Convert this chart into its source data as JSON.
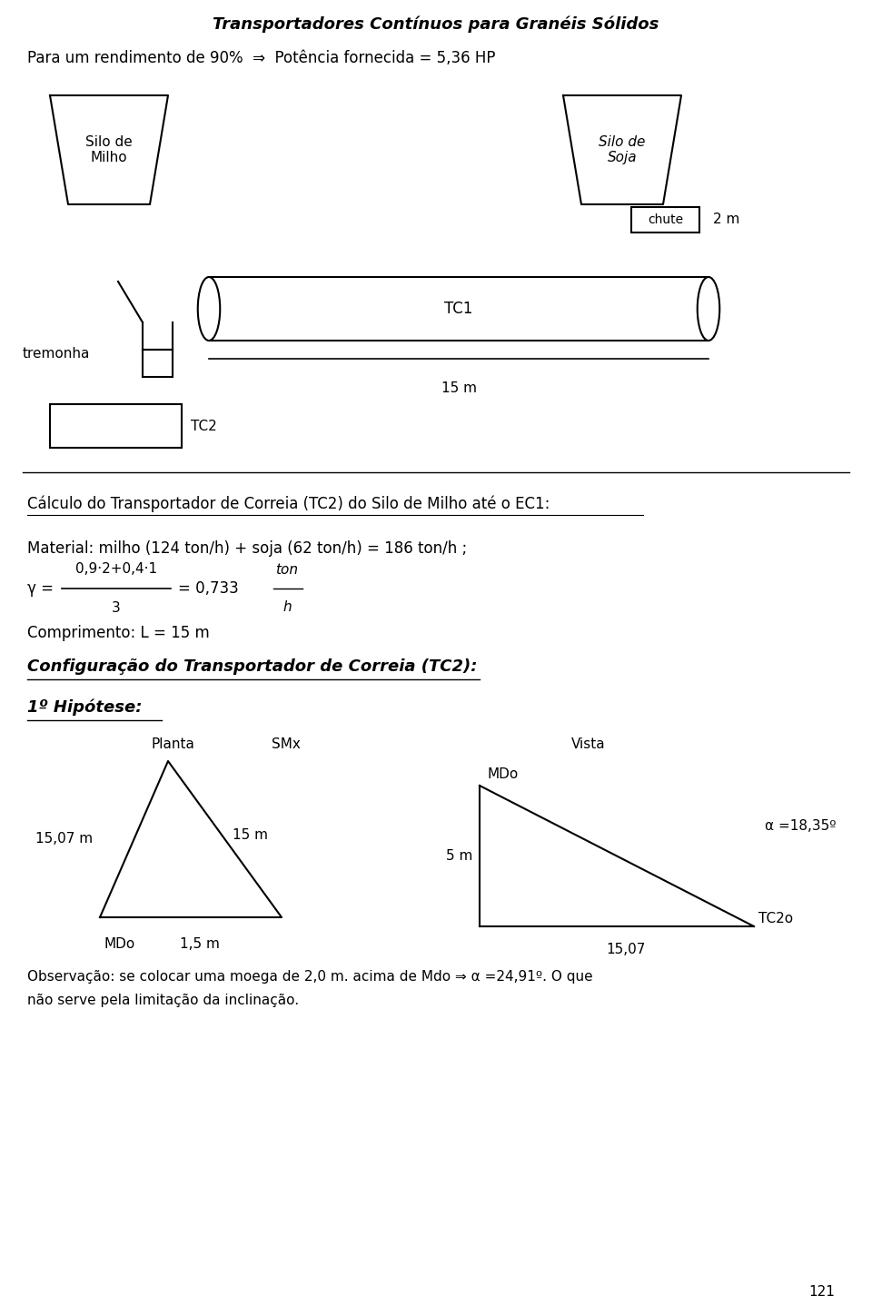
{
  "title": "Transportadores Contínuos para Granéis Sólidos",
  "line1": "Para um rendimento de 90%  ⇒  Potência fornecida = 5,36 HP",
  "silo_milho_label": "Silo de\nMilho",
  "silo_soja_label": "Silo de\nSoja",
  "chute_label": "chute",
  "dim_2m": "2 m",
  "tc1_label": "TC1",
  "tc2_label": "TC2",
  "tremonha_label": "tremonha",
  "dist_15m": "15 m",
  "section_title": "Cálculo do Transportador de Correia (TC2) do Silo de Milho até o EC1:",
  "material_line": "Material: milho (124 ton/h) + soja (62 ton/h) = 186 ton/h ;",
  "gamma_num": "0,9·2+0,4·1",
  "gamma_den": "3",
  "gamma_result": "= 0,733",
  "gamma_unit_num": "ton",
  "gamma_unit_den": "h",
  "comprimento_line": "Comprimento: L = 15 m",
  "config_title": "Configuração do Transportador de Correia (TC2):",
  "hipotese_title": "1º Hipótese:",
  "planta_label": "Planta",
  "smx_label": "SMx",
  "vista_label": "Vista",
  "mdo_label1": "MDo",
  "mdo_label2": "MDo",
  "dist_1507": "15,07 m",
  "dist_15m2": "15 m",
  "dist_5m": "5 m",
  "dist_1507b": "15,07",
  "dist_15m3": "1,5 m",
  "alpha_label": "α =18,35º",
  "tc2o_label": "TC2o",
  "obs_line1": "Observação: se colocar uma moega de 2,0 m. acima de Mdo ⇒ α =24,91º. O que",
  "obs_line2": "não serve pela limitação da inclinação.",
  "page_num": "121",
  "bg_color": "#ffffff",
  "text_color": "#000000",
  "line_color": "#000000"
}
